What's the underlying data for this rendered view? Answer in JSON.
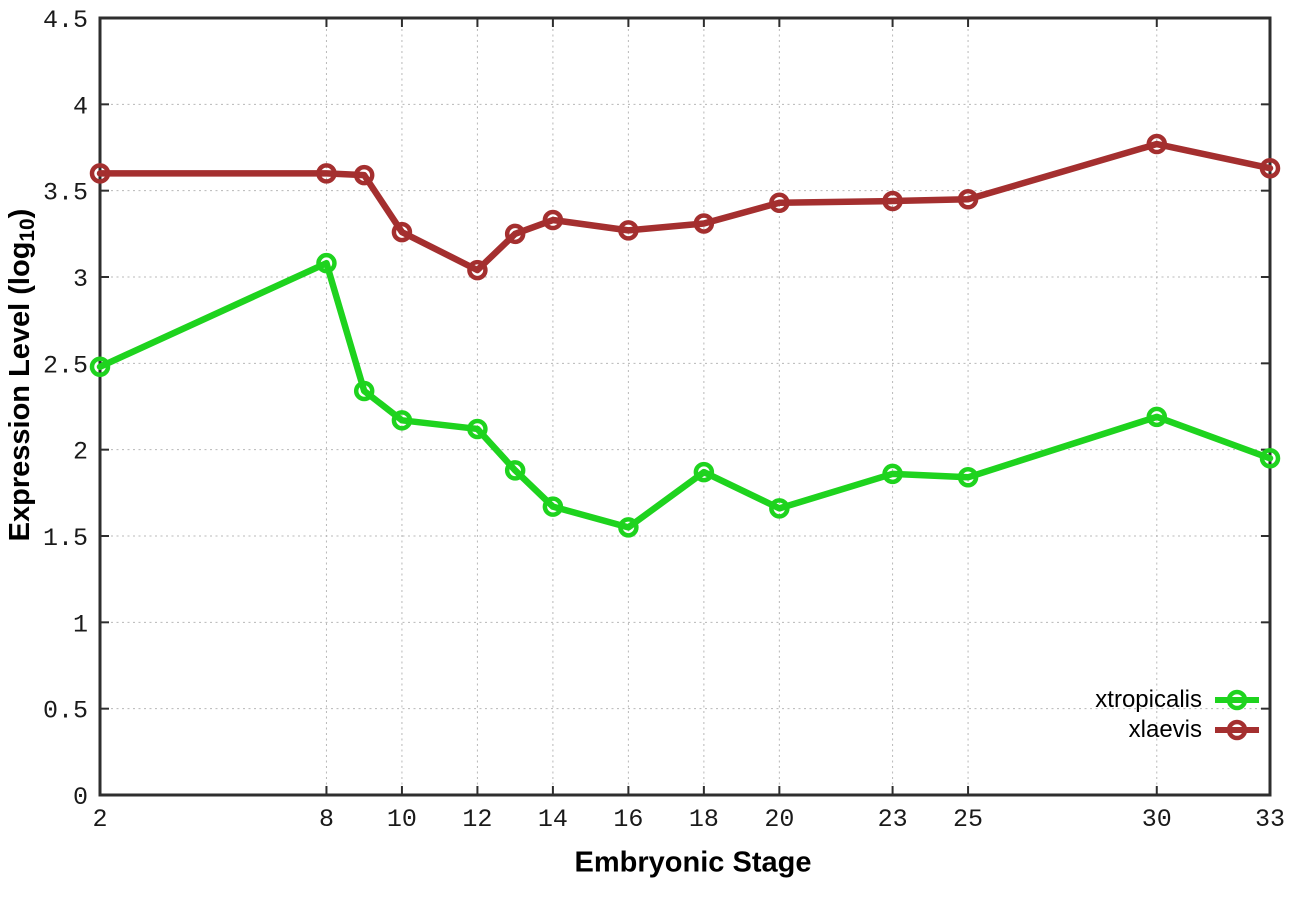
{
  "chart_data": {
    "type": "line",
    "title": "",
    "xlabel": "Embryonic Stage",
    "ylabel": "Expression Level (log10)",
    "x": [
      2,
      8,
      9,
      10,
      12,
      13,
      14,
      16,
      18,
      20,
      23,
      25,
      30,
      33
    ],
    "series": [
      {
        "name": "xtropicalis",
        "color": "#1ed31e",
        "values": [
          2.48,
          3.08,
          2.34,
          2.17,
          2.12,
          1.88,
          1.67,
          1.55,
          1.87,
          1.66,
          1.86,
          1.84,
          2.19,
          1.95
        ]
      },
      {
        "name": "xlaevis",
        "color": "#a42f2f",
        "values": [
          3.6,
          3.6,
          3.59,
          3.26,
          3.04,
          3.25,
          3.33,
          3.27,
          3.31,
          3.43,
          3.44,
          3.45,
          3.77,
          3.63
        ]
      }
    ],
    "xlim": [
      2,
      33
    ],
    "ylim": [
      0,
      4.5
    ],
    "xticks": [
      2,
      8,
      10,
      12,
      14,
      16,
      18,
      20,
      23,
      25,
      30,
      33
    ],
    "yticks": [
      0,
      0.5,
      1,
      1.5,
      2,
      2.5,
      3,
      3.5,
      4,
      4.5
    ],
    "grid": true,
    "grid_style": "dotted",
    "marker": "open-circle",
    "legend_position": "bottom-right-inside"
  },
  "axes": {
    "x": {
      "title": "Embryonic Stage"
    },
    "y": {
      "title_prefix": "Expression Level (log",
      "title_sub": "10",
      "title_suffix": ")"
    }
  },
  "legend": {
    "items": [
      {
        "label": "xtropicalis",
        "color": "#1ed31e"
      },
      {
        "label": "xlaevis",
        "color": "#a42f2f"
      }
    ]
  },
  "colors": {
    "frame": "#2e2e2e",
    "gridline": "#b8b8b8",
    "tick_label": "#1a1a1a",
    "background": "#ffffff"
  }
}
